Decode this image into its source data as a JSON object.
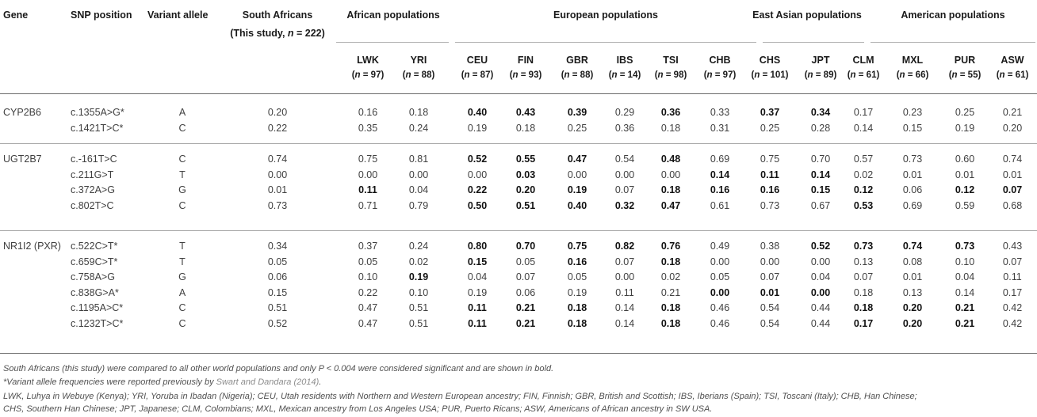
{
  "header": {
    "gene": "Gene",
    "snp_position": "SNP position",
    "variant_allele": "Variant allele",
    "south_africans_line1": "South Africans",
    "south_africans_line2_prefix": "(This study, ",
    "south_africans_n_var": "n",
    "south_africans_line2_suffix": " = 222)",
    "groups": [
      "African populations",
      "European populations",
      "East Asian populations",
      "American populations"
    ]
  },
  "populations": [
    {
      "code": "LWK",
      "n_var": "n",
      "n_text": " = 97)"
    },
    {
      "code": "YRI",
      "n_var": "n",
      "n_text": " = 88)"
    },
    {
      "code": "CEU",
      "n_var": "n",
      "n_text": " = 87)"
    },
    {
      "code": "FIN",
      "n_var": "n",
      "n_text": " = 93)"
    },
    {
      "code": "GBR",
      "n_var": "n",
      "n_text": " = 88)"
    },
    {
      "code": "IBS",
      "n_var": "n",
      "n_text": " = 14)"
    },
    {
      "code": "TSI",
      "n_var": "n",
      "n_text": " = 98)"
    },
    {
      "code": "CHB",
      "n_var": "n",
      "n_text": " = 97)"
    },
    {
      "code": "CHS",
      "n_var": "n",
      "n_text": " = 101)"
    },
    {
      "code": "JPT",
      "n_var": "n",
      "n_text": " = 89)"
    },
    {
      "code": "CLM",
      "n_var": "n",
      "n_text": " = 61)"
    },
    {
      "code": "MXL",
      "n_var": "n",
      "n_text": " = 66)"
    },
    {
      "code": "PUR",
      "n_var": "n",
      "n_text": " = 55)"
    },
    {
      "code": "ASW",
      "n_var": "n",
      "n_text": " = 61)"
    }
  ],
  "gene_groups": [
    {
      "gene": "CYP2B6",
      "rows": [
        {
          "snp": "c.1355A>G*",
          "allele": "A",
          "sa": "0.20",
          "values": [
            "0.16",
            "0.18",
            "0.40",
            "0.43",
            "0.39",
            "0.29",
            "0.36",
            "0.33",
            "0.37",
            "0.34",
            "0.17",
            "0.23",
            "0.25",
            "0.21"
          ],
          "bold": [
            2,
            3,
            4,
            6,
            8,
            9
          ]
        },
        {
          "snp": "c.1421T>C*",
          "allele": "C",
          "sa": "0.22",
          "values": [
            "0.35",
            "0.24",
            "0.19",
            "0.18",
            "0.25",
            "0.36",
            "0.18",
            "0.31",
            "0.25",
            "0.28",
            "0.14",
            "0.15",
            "0.19",
            "0.20"
          ],
          "bold": []
        }
      ]
    },
    {
      "gene": "UGT2B7",
      "rows": [
        {
          "snp": "c.-161T>C",
          "allele": "C",
          "sa": "0.74",
          "values": [
            "0.75",
            "0.81",
            "0.52",
            "0.55",
            "0.47",
            "0.54",
            "0.48",
            "0.69",
            "0.75",
            "0.70",
            "0.57",
            "0.73",
            "0.60",
            "0.74"
          ],
          "bold": [
            2,
            3,
            4,
            6
          ]
        },
        {
          "snp": "c.211G>T",
          "allele": "T",
          "sa": "0.00",
          "values": [
            "0.00",
            "0.00",
            "0.00",
            "0.03",
            "0.00",
            "0.00",
            "0.00",
            "0.14",
            "0.11",
            "0.14",
            "0.02",
            "0.01",
            "0.01",
            "0.01"
          ],
          "bold": [
            3,
            7,
            8,
            9
          ]
        },
        {
          "snp": "c.372A>G",
          "allele": "G",
          "sa": "0.01",
          "values": [
            "0.11",
            "0.04",
            "0.22",
            "0.20",
            "0.19",
            "0.07",
            "0.18",
            "0.16",
            "0.16",
            "0.15",
            "0.12",
            "0.06",
            "0.12",
            "0.07"
          ],
          "bold": [
            0,
            2,
            3,
            4,
            6,
            7,
            8,
            9,
            10,
            12,
            13
          ]
        },
        {
          "snp": "c.802T>C",
          "allele": "C",
          "sa": "0.73",
          "values": [
            "0.71",
            "0.79",
            "0.50",
            "0.51",
            "0.40",
            "0.32",
            "0.47",
            "0.61",
            "0.73",
            "0.67",
            "0.53",
            "0.69",
            "0.59",
            "0.68"
          ],
          "bold": [
            2,
            3,
            4,
            5,
            6,
            10
          ]
        }
      ]
    },
    {
      "gene": "NR1I2 (PXR)",
      "rows": [
        {
          "snp": "c.522C>T*",
          "allele": "T",
          "sa": "0.34",
          "values": [
            "0.37",
            "0.24",
            "0.80",
            "0.70",
            "0.75",
            "0.82",
            "0.76",
            "0.49",
            "0.38",
            "0.52",
            "0.73",
            "0.74",
            "0.73",
            "0.43"
          ],
          "bold": [
            2,
            3,
            4,
            5,
            6,
            9,
            10,
            11,
            12
          ]
        },
        {
          "snp": "c.659C>T*",
          "allele": "T",
          "sa": "0.05",
          "values": [
            "0.05",
            "0.02",
            "0.15",
            "0.05",
            "0.16",
            "0.07",
            "0.18",
            "0.00",
            "0.00",
            "0.00",
            "0.13",
            "0.08",
            "0.10",
            "0.07"
          ],
          "bold": [
            2,
            4,
            6
          ]
        },
        {
          "snp": "c.758A>G",
          "allele": "G",
          "sa": "0.06",
          "values": [
            "0.10",
            "0.19",
            "0.04",
            "0.07",
            "0.05",
            "0.00",
            "0.02",
            "0.05",
            "0.07",
            "0.04",
            "0.07",
            "0.01",
            "0.04",
            "0.11"
          ],
          "bold": [
            1
          ]
        },
        {
          "snp": "c.838G>A*",
          "allele": "A",
          "sa": "0.15",
          "values": [
            "0.22",
            "0.10",
            "0.19",
            "0.06",
            "0.19",
            "0.11",
            "0.21",
            "0.00",
            "0.01",
            "0.00",
            "0.18",
            "0.13",
            "0.14",
            "0.17"
          ],
          "bold": [
            7,
            8,
            9
          ]
        },
        {
          "snp": "c.1195A>C*",
          "allele": "C",
          "sa": "0.51",
          "values": [
            "0.47",
            "0.51",
            "0.11",
            "0.21",
            "0.18",
            "0.14",
            "0.18",
            "0.46",
            "0.54",
            "0.44",
            "0.18",
            "0.20",
            "0.21",
            "0.42"
          ],
          "bold": [
            2,
            3,
            4,
            6,
            10,
            11,
            12
          ]
        },
        {
          "snp": "c.1232T>C*",
          "allele": "C",
          "sa": "0.52",
          "values": [
            "0.47",
            "0.51",
            "0.11",
            "0.21",
            "0.18",
            "0.14",
            "0.18",
            "0.46",
            "0.54",
            "0.44",
            "0.17",
            "0.20",
            "0.21",
            "0.42"
          ],
          "bold": [
            2,
            3,
            4,
            6,
            10,
            11,
            12
          ]
        }
      ]
    }
  ],
  "footnotes": {
    "note1_a": "South Africans (this study) were compared to all other world populations and only ",
    "note1_p": "P",
    "note1_b": " < 0.004 were considered significant and are shown in bold.",
    "note2_text": "*Variant allele frequencies were reported previously by ",
    "note2_ref": "Swart and Dandara (2014)",
    "note2_end": ".",
    "note3": "LWK, Luhya in Webuye (Kenya); YRI, Yoruba in Ibadan (Nigeria); CEU, Utah residents with Northern and Western European ancestry; FIN, Finnish; GBR, British and Scottish; IBS, Iberians (Spain); TSI, Toscani (Italy); CHB, Han Chinese;",
    "note4": "CHS, Southern Han Chinese; JPT, Japanese; CLM, Colombians; MXL, Mexican ancestry from Los Angeles USA; PUR, Puerto Ricans; ASW, Americans of African ancestry in SW USA."
  }
}
